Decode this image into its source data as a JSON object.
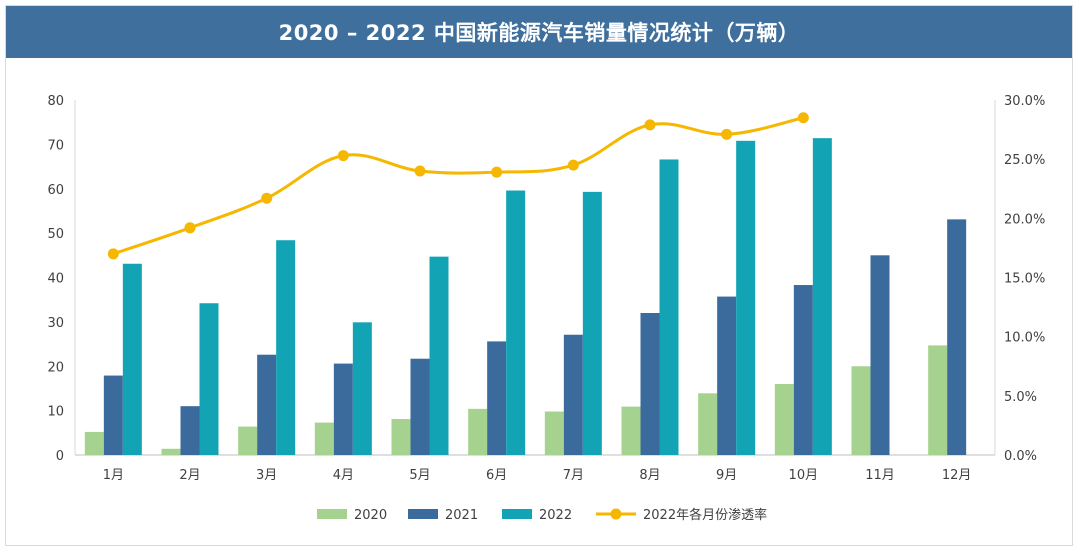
{
  "title": "2020 – 2022 中国新能源汽车销量情况统计（万辆）",
  "colors": {
    "title_bg": "#3f6f9d",
    "s2020": "#a6d28f",
    "s2021": "#3a6b9c",
    "s2022": "#12a3b5",
    "line": "#f5b700"
  },
  "chart_data": {
    "type": "bar",
    "categories": [
      "1月",
      "2月",
      "3月",
      "4月",
      "5月",
      "6月",
      "7月",
      "8月",
      "9月",
      "10月",
      "11月",
      "12月"
    ],
    "series": [
      {
        "name": "2020",
        "type": "bar",
        "axis": "left",
        "values": [
          5.2,
          1.4,
          6.4,
          7.3,
          8.1,
          10.4,
          9.8,
          10.9,
          13.9,
          16.0,
          20.0,
          24.7
        ]
      },
      {
        "name": "2021",
        "type": "bar",
        "axis": "left",
        "values": [
          17.9,
          11.0,
          22.6,
          20.6,
          21.7,
          25.6,
          27.1,
          32.0,
          35.7,
          38.3,
          45.0,
          53.1
        ]
      },
      {
        "name": "2022",
        "type": "bar",
        "axis": "left",
        "values": [
          43.1,
          34.2,
          48.4,
          29.9,
          44.7,
          59.6,
          59.3,
          66.6,
          70.8,
          71.4,
          null,
          null
        ]
      },
      {
        "name": "2022年各月份渗透率",
        "type": "line",
        "axis": "right",
        "values": [
          0.17,
          0.192,
          0.217,
          0.253,
          0.24,
          0.239,
          0.245,
          0.279,
          0.271,
          0.285,
          null,
          null
        ]
      }
    ],
    "ylim_left": [
      0,
      80
    ],
    "yticks_left": [
      "0",
      "10",
      "20",
      "30",
      "40",
      "50",
      "60",
      "70",
      "80"
    ],
    "ylim_right": [
      0,
      0.3
    ],
    "yticks_right": [
      "0.0%",
      "5.0%",
      "10.0%",
      "15.0%",
      "20.0%",
      "25.0%",
      "30.0%"
    ],
    "legend_position": "bottom",
    "grid": false
  },
  "legend": [
    {
      "label": "2020",
      "kind": "bar"
    },
    {
      "label": "2021",
      "kind": "bar"
    },
    {
      "label": "2022",
      "kind": "bar"
    },
    {
      "label": "2022年各月份渗透率",
      "kind": "line"
    }
  ]
}
